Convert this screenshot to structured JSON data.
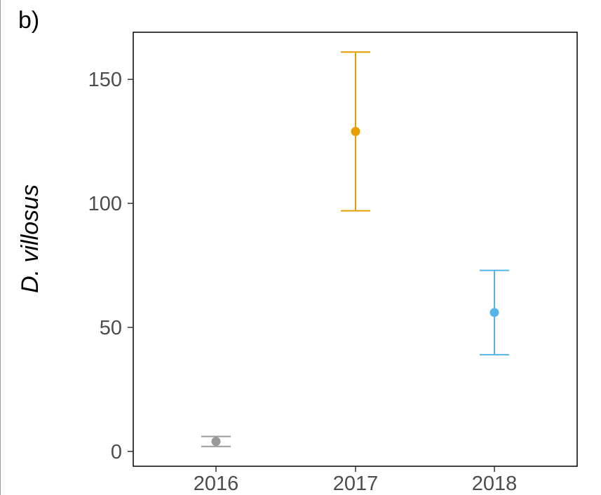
{
  "panel_label": "b)",
  "chart_data": {
    "type": "scatter",
    "title": "",
    "xlabel": "",
    "ylabel": "D. villosus",
    "categories": [
      "2016",
      "2017",
      "2018"
    ],
    "points": [
      {
        "x": "2016",
        "y": 4,
        "ymin": 2,
        "ymax": 6,
        "color": "#999999"
      },
      {
        "x": "2017",
        "y": 129,
        "ymin": 97,
        "ymax": 161,
        "color": "#E69F00"
      },
      {
        "x": "2018",
        "y": 56,
        "ymin": 39,
        "ymax": 73,
        "color": "#56B4E9"
      }
    ],
    "yticks": [
      0,
      50,
      100,
      150
    ],
    "ytick_labels": [
      "0",
      "50",
      "100",
      "150"
    ],
    "ylim": [
      -6,
      169
    ],
    "grid": false,
    "legend": "none"
  }
}
